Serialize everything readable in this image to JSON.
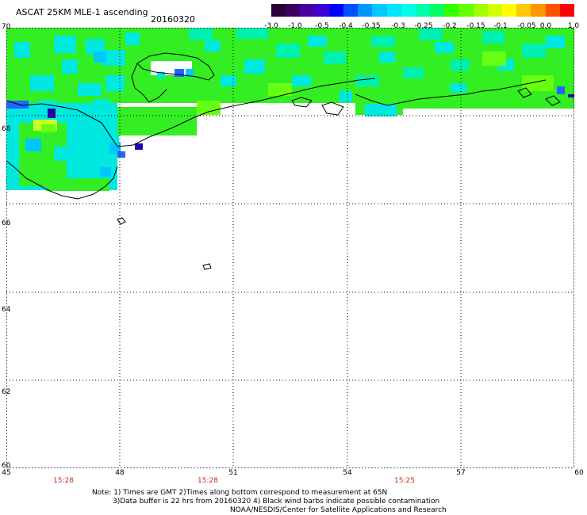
{
  "header": {
    "title": "ASCAT 25KM MLE-1 ascending",
    "date": "20160320"
  },
  "colorbar": {
    "colors": [
      "#2d0037",
      "#3c0064",
      "#4b00a0",
      "#3c00d2",
      "#0000ff",
      "#0050ff",
      "#0096ff",
      "#00c8ff",
      "#00e6ff",
      "#00ffe6",
      "#00ffaa",
      "#00ff64",
      "#32ff00",
      "#64ff00",
      "#a0ff00",
      "#d2ff00",
      "#ffff00",
      "#ffc800",
      "#ff9600",
      "#ff5000",
      "#ff0000"
    ],
    "labels": [
      "-3.0",
      "-1.0",
      "-0.5",
      "-0.4",
      "-0.35",
      "-0.3",
      "-0.25",
      "-0.2",
      "-0.15",
      "-0.1",
      "-0.05",
      "0.0",
      "1.0"
    ]
  },
  "map": {
    "lat_labels": [
      "70",
      "68",
      "66",
      "64",
      "62",
      "60"
    ],
    "lon_labels": [
      "45",
      "48",
      "51",
      "54",
      "57",
      "60"
    ],
    "time_labels": [
      "15:28",
      "15:28",
      "15:25"
    ],
    "data_colors": {
      "green": "#33ee22",
      "lime": "#66ff11",
      "cyan": "#00e8e0",
      "teal": "#00f0b0",
      "sky": "#00c8ff",
      "blue": "#2266ff",
      "navy": "#2200aa",
      "yellow": "#ccff22"
    }
  },
  "notes": {
    "line1": "Note: 1) Times are GMT 2)Times along bottom correspond to measurement at 65N",
    "line2": "3)Data buffer is 22 hrs from 20160320 4) Black wind barbs indicate possible contamination",
    "line3": "NOAA/NESDIS/Center for Satellite Applications and Research"
  }
}
